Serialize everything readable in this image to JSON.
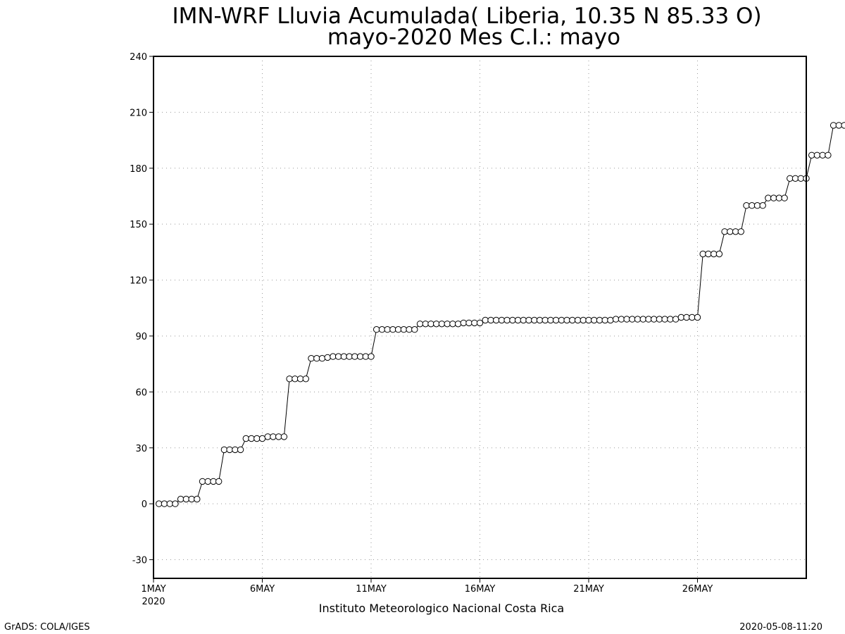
{
  "title_line1": "IMN-WRF  Lluvia Acumulada( Liberia, 10.35  N 85.33  O)",
  "title_line2": "mayo-2020 Mes C.I.: mayo",
  "footer_center": "Instituto Meteorologico Nacional Costa Rica",
  "footer_left": "GrADS: COLA/IGES",
  "footer_right": "2020-05-08-11:20",
  "chart_data": {
    "type": "line",
    "title": "IMN-WRF  Lluvia Acumulada( Liberia, 10.35  N 85.33  O)",
    "subtitle": "mayo-2020 Mes C.I.: mayo",
    "xlabel": "",
    "ylabel": "",
    "x_unit": "days since 1MAY 2020, 6-hourly steps",
    "xlim": [
      0,
      30
    ],
    "ylim": [
      -40,
      240
    ],
    "yticks": [
      -30,
      0,
      30,
      60,
      90,
      120,
      150,
      180,
      210,
      240
    ],
    "xticks": [
      {
        "x": 0,
        "label": "1MAY",
        "sublabel": "2020"
      },
      {
        "x": 5,
        "label": "6MAY"
      },
      {
        "x": 10,
        "label": "11MAY"
      },
      {
        "x": 15,
        "label": "16MAY"
      },
      {
        "x": 20,
        "label": "21MAY"
      },
      {
        "x": 25,
        "label": "26MAY"
      }
    ],
    "grid": true,
    "marker": "open-circle",
    "series": [
      {
        "name": "",
        "values": [
          0,
          0,
          0,
          0,
          2.5,
          2.5,
          2.5,
          2.5,
          12,
          12,
          12,
          12,
          29,
          29,
          29,
          29,
          35,
          35,
          35,
          35,
          36,
          36,
          36,
          36,
          67,
          67,
          67,
          67,
          78,
          78,
          78,
          78.5,
          79,
          79,
          79,
          79,
          79,
          79,
          79,
          79,
          93.5,
          93.5,
          93.5,
          93.5,
          93.5,
          93.5,
          93.5,
          93.5,
          96.5,
          96.5,
          96.5,
          96.5,
          96.5,
          96.5,
          96.5,
          96.5,
          97,
          97,
          97,
          97,
          98.5,
          98.5,
          98.5,
          98.5,
          98.5,
          98.5,
          98.5,
          98.5,
          98.5,
          98.5,
          98.5,
          98.5,
          98.5,
          98.5,
          98.5,
          98.5,
          98.5,
          98.5,
          98.5,
          98.5,
          98.5,
          98.5,
          98.5,
          98.5,
          99,
          99,
          99,
          99,
          99,
          99,
          99,
          99,
          99,
          99,
          99,
          99,
          100,
          100,
          100,
          100,
          134,
          134,
          134,
          134,
          146,
          146,
          146,
          146,
          160,
          160,
          160,
          160,
          164,
          164,
          164,
          164,
          174.5,
          174.5,
          174.5,
          174.5,
          187,
          187,
          187,
          187,
          203,
          203,
          203,
          203
        ]
      }
    ]
  }
}
